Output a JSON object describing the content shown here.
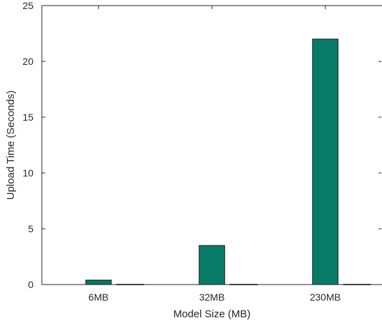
{
  "chart_data": {
    "type": "bar",
    "title": "",
    "xlabel": "Model Size (MB)",
    "ylabel": "Upload Time (Seconds)",
    "categories": [
      "6MB",
      "32MB",
      "230MB"
    ],
    "values": [
      0.4,
      3.5,
      22
    ],
    "ylim": [
      0,
      25
    ],
    "yticks": [
      0,
      5,
      10,
      15,
      20,
      25
    ],
    "grid": false,
    "legend": "none",
    "colors": {
      "bar_fill": "#077B66",
      "bar_edge": "#1a1a1a",
      "axis": "#262626"
    }
  }
}
